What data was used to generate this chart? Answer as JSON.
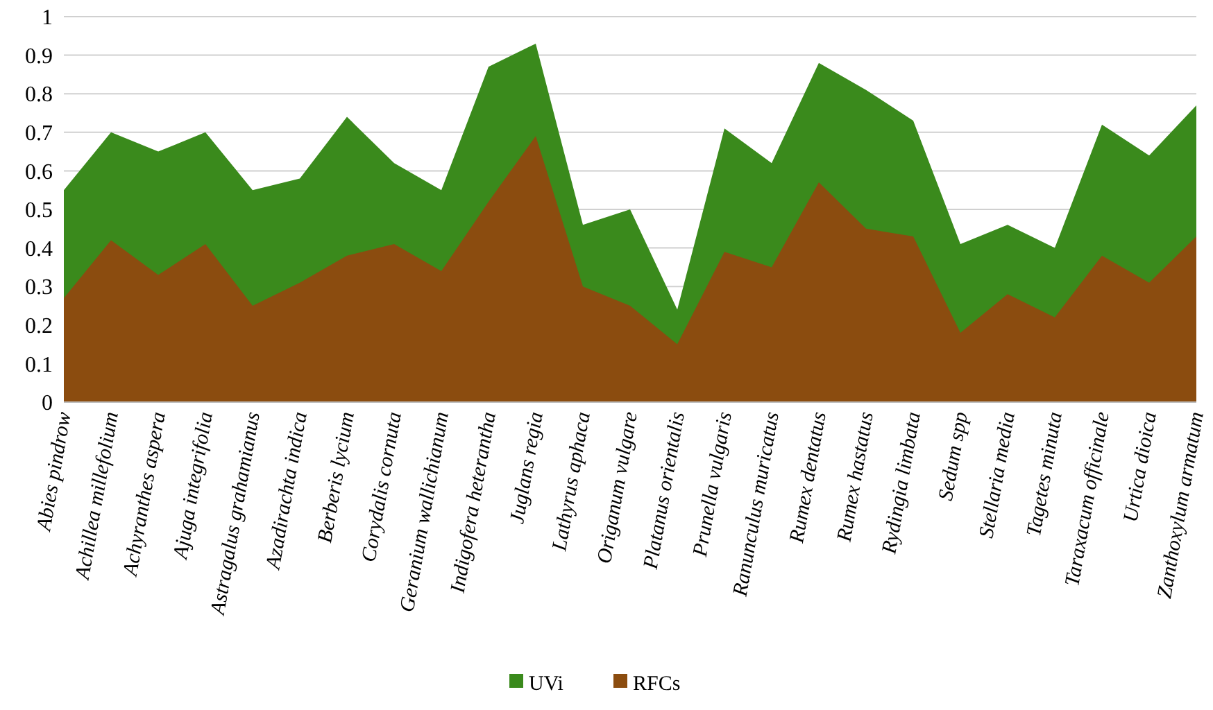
{
  "chart_data": {
    "type": "area",
    "categories": [
      "Abies pindrow",
      "Achillea millefolium",
      "Achyranthes aspera",
      "Ajuga integrifolia",
      "Astragalus grahamianus",
      "Azadirachta indica",
      "Berberis lycium",
      "Corydalis cornuta",
      "Geranium wallichianum",
      "Indigofera heterantha",
      "Juglans regia",
      "Lathyrus aphaca",
      "Origanum vulgare",
      "Platanus orientalis",
      "Prunella vulgaris",
      "Ranunculus muricatus",
      "Rumex dentatus",
      "Rumex hastatus",
      "Rydingia limbata",
      "Sedum spp",
      "Stellaria media",
      "Tagetes minuta",
      "Taraxacum officinale",
      "Urtica dioica",
      "Zanthoxylum armatum"
    ],
    "series": [
      {
        "name": "UVi",
        "color": "#3a8a1c",
        "values": [
          0.55,
          0.7,
          0.65,
          0.7,
          0.55,
          0.58,
          0.74,
          0.62,
          0.55,
          0.87,
          0.93,
          0.46,
          0.5,
          0.24,
          0.71,
          0.62,
          0.88,
          0.81,
          0.73,
          0.41,
          0.46,
          0.4,
          0.72,
          0.64,
          0.77
        ]
      },
      {
        "name": "RFCs",
        "color": "#8b4c0f",
        "values": [
          0.27,
          0.42,
          0.33,
          0.41,
          0.25,
          0.31,
          0.38,
          0.41,
          0.34,
          0.52,
          0.69,
          0.3,
          0.25,
          0.15,
          0.39,
          0.35,
          0.57,
          0.45,
          0.43,
          0.18,
          0.28,
          0.22,
          0.38,
          0.31,
          0.43
        ]
      }
    ],
    "ylim": [
      0,
      1
    ],
    "yticks": [
      0,
      0.1,
      0.2,
      0.3,
      0.4,
      0.5,
      0.6,
      0.7,
      0.8,
      0.9,
      1
    ],
    "grid": "y",
    "legend": "bottom"
  }
}
